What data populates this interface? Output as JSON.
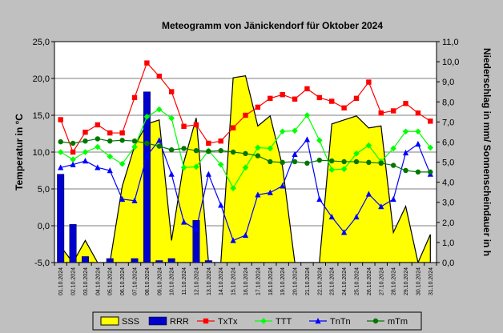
{
  "chart_data": {
    "type": "line",
    "title": "Meteogramm von Jänickendorf für Oktober 2024",
    "ylabel_left": "Temperatur in °C",
    "ylabel_right": "Niederschlag in mm/ Sonnenscheindauer in h",
    "ylim_left": [
      -5,
      25
    ],
    "ylim_right": [
      0,
      11
    ],
    "yticks_left": [
      "-5,0",
      "0,0",
      "5,0",
      "10,0",
      "15,0",
      "20,0",
      "25,0"
    ],
    "yticks_right": [
      "0,0",
      "1,0",
      "2,0",
      "3,0",
      "4,0",
      "5,0",
      "6,0",
      "7,0",
      "8,0",
      "9,0",
      "10,0",
      "11,0"
    ],
    "x": [
      "01.10.2024",
      "02.10.2024",
      "03.10.2024",
      "04.10.2024",
      "05.10.2024",
      "06.10.2024",
      "07.10.2024",
      "08.10.2024",
      "09.10.2024",
      "10.10.2024",
      "11.10.2024",
      "12.10.2024",
      "13.10.2024",
      "14.10.2024",
      "15.10.2024",
      "16.10.2024",
      "17.10.2024",
      "18.10.2024",
      "19.10.2024",
      "20.10.2024",
      "21.10.2024",
      "22.10.2024",
      "23.10.2024",
      "24.10.2024",
      "25.10.2024",
      "26.10.2024",
      "27.10.2024",
      "28.10.2024",
      "29.10.2024",
      "30.10.2024",
      "31.10.2024"
    ],
    "grid": true,
    "legend_position": "bottom",
    "colors": {
      "plot_bg": "#ffffff",
      "sss": "#ffff00",
      "rrr": "#0000cc",
      "txtx": "#ff0000",
      "ttt": "#00ff00",
      "tntn": "#0000ff",
      "mtm": "#007700"
    },
    "series": [
      {
        "name": "SSS",
        "axis": "right",
        "kind": "area",
        "values": [
          0.8,
          0.0,
          1.1,
          0.0,
          0.0,
          3.8,
          5.8,
          6.9,
          7.1,
          1.1,
          5.0,
          7.2,
          0.0,
          0.0,
          9.2,
          9.3,
          6.8,
          7.3,
          4.8,
          0.0,
          0.0,
          0.0,
          6.9,
          7.1,
          7.3,
          6.7,
          6.8,
          1.5,
          2.8,
          0.0,
          1.4
        ]
      },
      {
        "name": "RRR",
        "axis": "right",
        "kind": "bar",
        "values": [
          4.4,
          1.9,
          0.3,
          0.0,
          0.2,
          0.0,
          0.2,
          8.5,
          0.1,
          0.2,
          0.0,
          2.1,
          0.1,
          0.0,
          0.0,
          0.0,
          0.0,
          0.0,
          0.0,
          0.0,
          0.0,
          0.0,
          0.0,
          0.0,
          0.0,
          0.0,
          0.0,
          0.0,
          0.0,
          0.0,
          0.0
        ]
      },
      {
        "name": "TxTx",
        "axis": "left",
        "kind": "line",
        "marker": "square",
        "values": [
          14.4,
          10.0,
          12.7,
          13.7,
          12.6,
          12.6,
          17.4,
          22.1,
          20.3,
          18.2,
          13.5,
          13.7,
          11.2,
          11.5,
          13.3,
          15.0,
          16.1,
          17.3,
          17.8,
          17.2,
          18.6,
          17.4,
          16.9,
          16.0,
          17.3,
          19.5,
          15.3,
          15.6,
          16.6,
          15.3,
          14.2
        ]
      },
      {
        "name": "TTT",
        "axis": "left",
        "kind": "line",
        "marker": "diamond",
        "values": [
          10.0,
          9.0,
          10.0,
          10.7,
          9.4,
          8.4,
          10.7,
          14.8,
          15.8,
          14.6,
          7.9,
          8.0,
          10.2,
          8.3,
          5.1,
          7.9,
          10.6,
          10.5,
          12.8,
          12.9,
          15.0,
          11.6,
          7.6,
          7.7,
          9.8,
          10.9,
          8.7,
          10.5,
          12.8,
          12.8,
          10.6
        ]
      },
      {
        "name": "TnTn",
        "axis": "left",
        "kind": "line",
        "marker": "triangle",
        "values": [
          7.9,
          8.3,
          8.8,
          7.9,
          7.5,
          3.6,
          3.4,
          9.5,
          11.6,
          7.0,
          0.5,
          -0.5,
          7.0,
          2.8,
          -2.0,
          -1.3,
          4.2,
          4.5,
          5.4,
          9.7,
          11.7,
          3.6,
          1.2,
          -0.9,
          1.2,
          4.3,
          2.6,
          3.6,
          9.9,
          11.1,
          7.0
        ]
      },
      {
        "name": "mTm",
        "axis": "left",
        "kind": "line",
        "marker": "circle",
        "values": [
          11.4,
          11.2,
          11.5,
          11.8,
          11.5,
          11.6,
          11.5,
          11.2,
          10.8,
          10.3,
          10.5,
          10.2,
          10.1,
          10.2,
          10.0,
          9.8,
          9.5,
          8.7,
          8.6,
          8.7,
          8.5,
          8.9,
          8.8,
          8.7,
          8.7,
          8.6,
          8.5,
          8.2,
          7.5,
          7.3,
          7.3
        ]
      }
    ]
  }
}
